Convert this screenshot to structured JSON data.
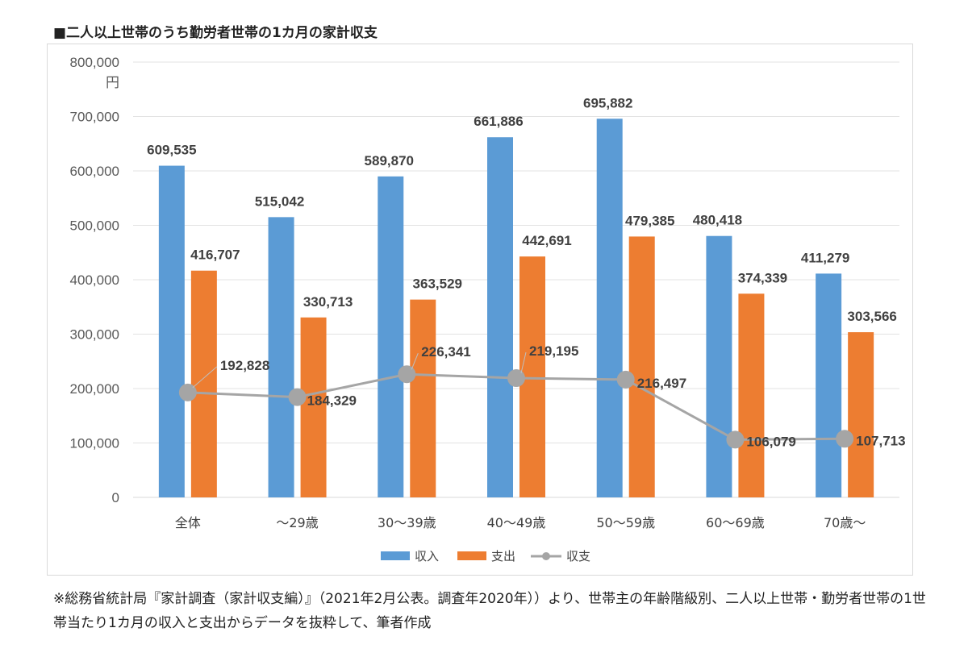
{
  "title": "■二人以上世帯のうち勤労者世帯の1カ月の家計収支",
  "note": "※総務省統計局『家計調査（家計収支編）』（2021年2月公表。調査年2020年））より、世帯主の年齢階級別、二人以上世帯・勤労者世帯の1世帯当たり1カ月の収入と支出からデータを抜粋して、筆者作成",
  "chart_data": {
    "type": "bar",
    "unit": "円",
    "categories": [
      "全体",
      "～29歳",
      "30～39歳",
      "40～49歳",
      "50～59歳",
      "60～69歳",
      "70歳～"
    ],
    "ylim": [
      0,
      800000
    ],
    "yticks": [
      "0",
      "100,000",
      "200,000",
      "300,000",
      "400,000",
      "500,000",
      "600,000",
      "700,000",
      "800,000"
    ],
    "grid": true,
    "legend_position": "bottom",
    "series": [
      {
        "name": "収入",
        "type": "bar",
        "color": "#5b9bd5",
        "values": [
          609535,
          515042,
          589870,
          661886,
          695882,
          480418,
          411279
        ],
        "labels": [
          "609,535",
          "515,042",
          "589,870",
          "661,886",
          "695,882",
          "480,418",
          "411,279"
        ]
      },
      {
        "name": "支出",
        "type": "bar",
        "color": "#ed7d31",
        "values": [
          416707,
          330713,
          363529,
          442691,
          479385,
          374339,
          303566
        ],
        "labels": [
          "416,707",
          "330,713",
          "363,529",
          "442,691",
          "479,385",
          "374,339",
          "303,566"
        ]
      },
      {
        "name": "収支",
        "type": "line",
        "color": "#a5a5a5",
        "values": [
          192828,
          184329,
          226341,
          219195,
          216497,
          106079,
          107713
        ],
        "labels": [
          "192,828",
          "184,329",
          "226,341",
          "219,195",
          "216,497",
          "106,079",
          "107,713"
        ]
      }
    ]
  }
}
